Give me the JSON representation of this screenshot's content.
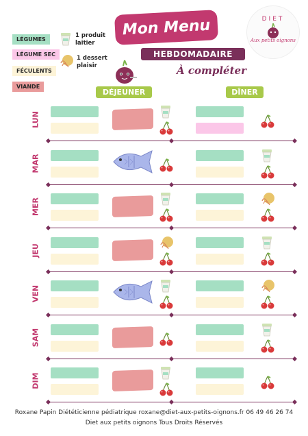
{
  "legend": {
    "tags": [
      {
        "label": "LÉGUMES",
        "color": "#a5dfc3"
      },
      {
        "label": "LÉGUME SEC",
        "color": "#fbc7e8"
      },
      {
        "label": "FÉCULENTS",
        "color": "#fdf4d8"
      },
      {
        "label": "VIANDE",
        "color": "#e99b9b"
      }
    ],
    "dairy": [
      "1 produit",
      "laitier"
    ],
    "dessert": [
      "1 dessert",
      "plaisir"
    ]
  },
  "title": "Mon Menu",
  "subtitle": "HEBDOMADAIRE",
  "tagline": "À compléter",
  "logo": {
    "top": "DIET",
    "bottom": "Aux petits oignons"
  },
  "columns": {
    "lunch": "DÉJEUNER",
    "dinner": "DÎNER"
  },
  "days": [
    {
      "name": "LUN",
      "lunch_main": "meat",
      "lunch_icons": [
        "dairy-icon",
        "cherries-icon"
      ],
      "dinner_bottom": "pink",
      "dinner_icons": [
        "cherries-icon"
      ]
    },
    {
      "name": "MAR",
      "lunch_main": "fish",
      "lunch_icons": [
        "cherries-icon"
      ],
      "dinner_bottom": "cream",
      "dinner_icons": [
        "dairy-icon",
        "cherries-icon"
      ]
    },
    {
      "name": "MER",
      "lunch_main": "meat",
      "lunch_icons": [
        "dairy-icon",
        "cherries-icon"
      ],
      "dinner_bottom": "cream",
      "dinner_icons": [
        "cookie-icon",
        "cherries-icon"
      ]
    },
    {
      "name": "JEU",
      "lunch_main": "meat",
      "lunch_icons": [
        "cookie-icon",
        "cherries-icon"
      ],
      "dinner_bottom": "cream",
      "dinner_icons": [
        "dairy-icon",
        "cherries-icon"
      ]
    },
    {
      "name": "VEN",
      "lunch_main": "fish",
      "lunch_icons": [
        "dairy-icon",
        "cherries-icon"
      ],
      "dinner_bottom": "cream",
      "dinner_icons": [
        "cookie-icon",
        "cherries-icon"
      ]
    },
    {
      "name": "SAM",
      "lunch_main": "meat",
      "lunch_icons": [
        "cherries-icon"
      ],
      "dinner_bottom": "cream",
      "dinner_icons": [
        "dairy-icon",
        "cherries-icon"
      ]
    },
    {
      "name": "DIM",
      "lunch_main": "meat",
      "lunch_icons": [
        "dairy-icon",
        "cherries-icon"
      ],
      "dinner_bottom": "cream",
      "dinner_icons": [
        "cherries-icon"
      ]
    }
  ],
  "footer": {
    "line1": "Roxane Papin Diététicienne pédiatrique roxane@diet-aux-petits-oignons.fr 06 49 46 26 74",
    "line2": "Diet aux petits oignons Tous Droits Réservés"
  }
}
